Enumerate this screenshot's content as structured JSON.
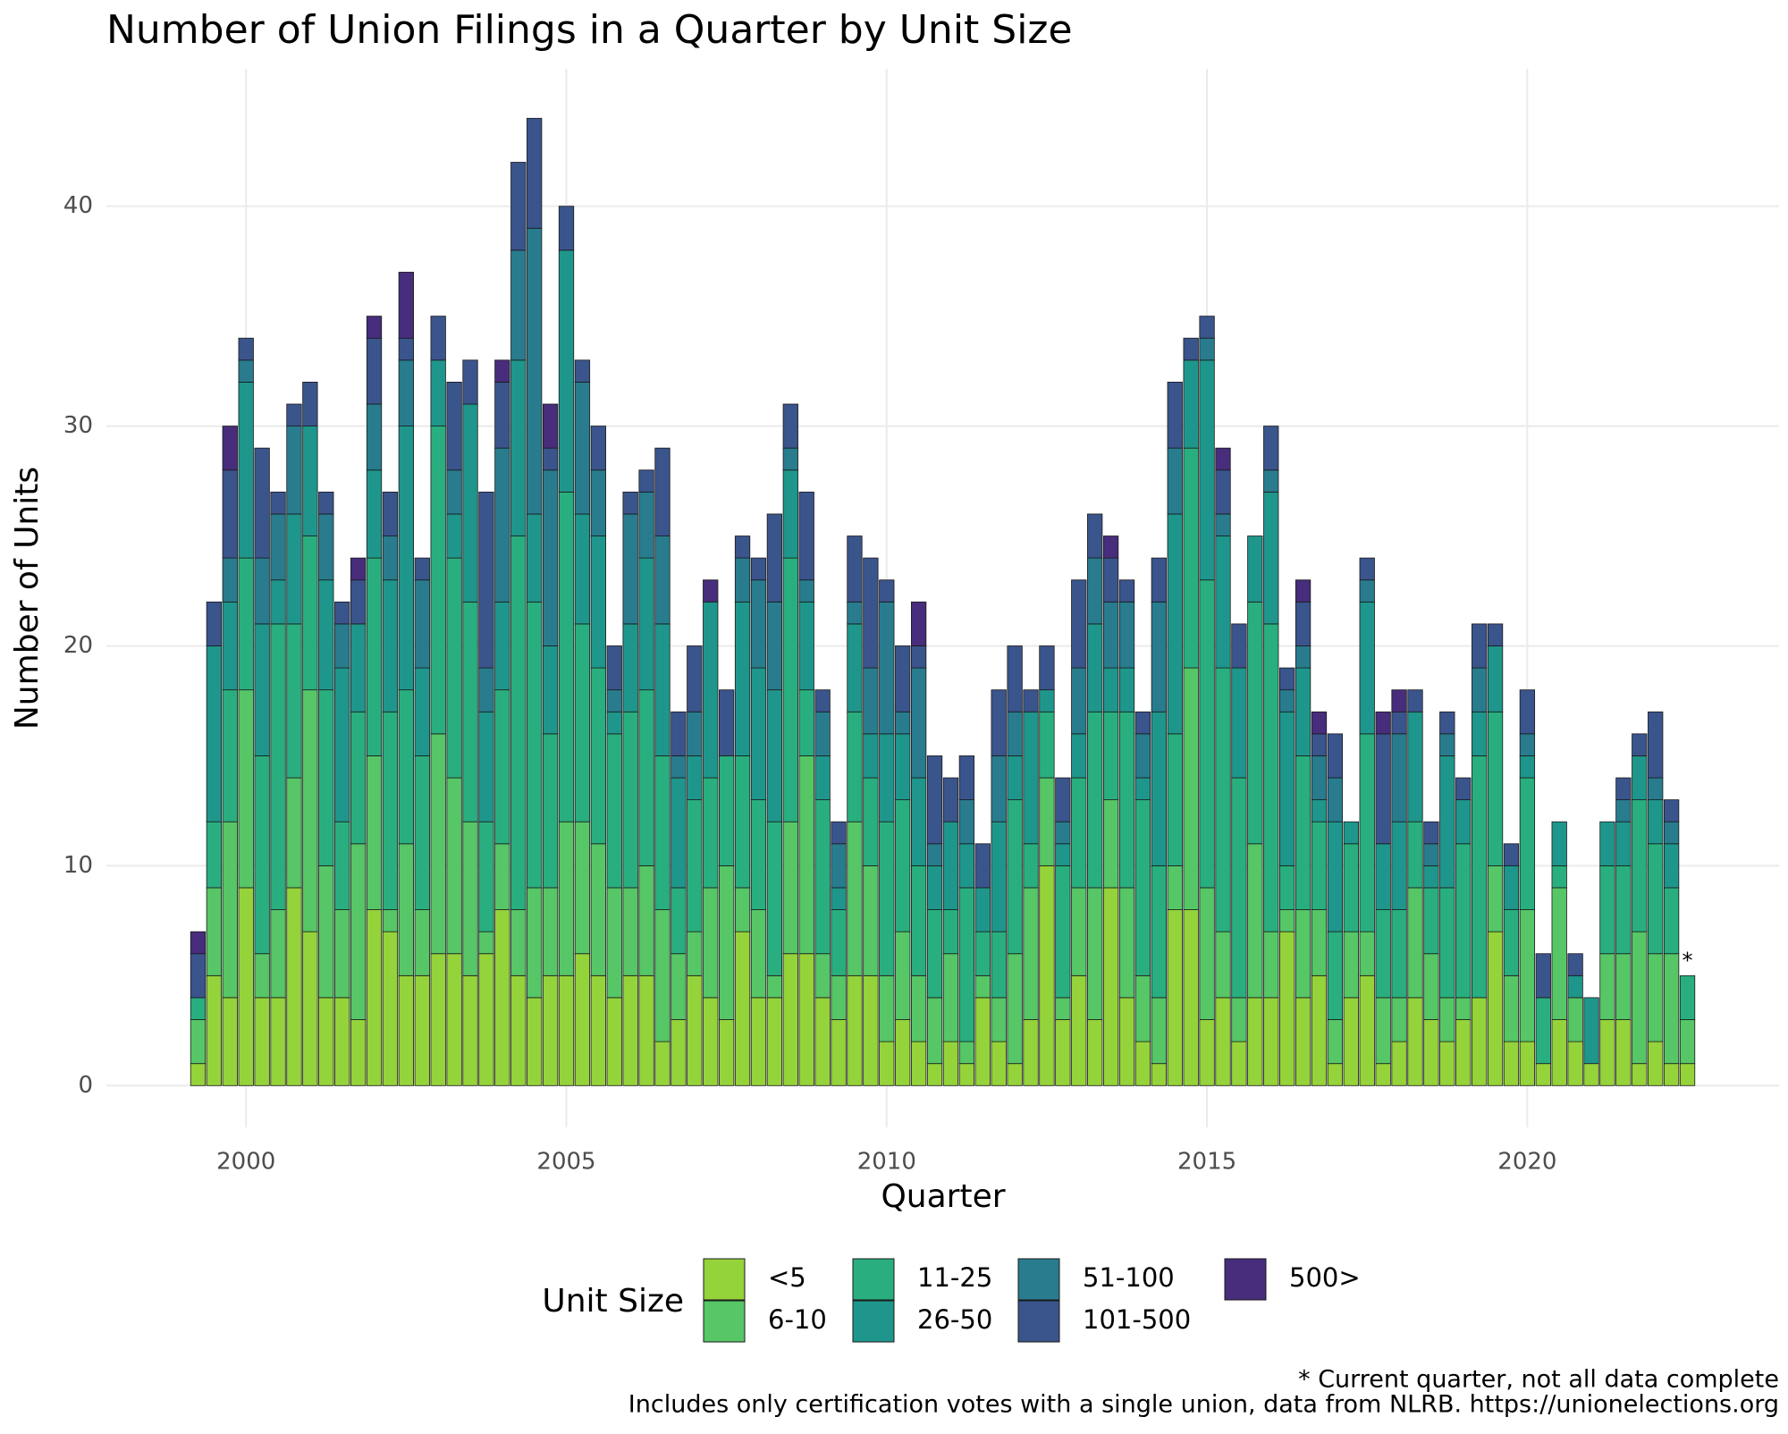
{
  "chart_data": {
    "type": "stacked_bar",
    "title": "Number of Union Filings in a Quarter by Unit Size",
    "x_label": "Quarter",
    "y_label": "Number of Units",
    "legend_title": "Unit Size",
    "annotation": "*",
    "footnotes": [
      "* Current quarter, not all data complete",
      "Includes only certification votes with a single union, data from NLRB. https://unionelections.org"
    ],
    "xlim": [
      1997.82,
      2023.93
    ],
    "xticks": [
      2000,
      2005,
      2010,
      2015,
      2020
    ],
    "ylim": [
      -1.9,
      46.25
    ],
    "yticks": [
      0,
      10,
      20,
      30,
      40
    ],
    "grid": true,
    "x": [
      1999.25,
      1999.5,
      1999.75,
      2000,
      2000.25,
      2000.5,
      2000.75,
      2001,
      2001.25,
      2001.5,
      2001.75,
      2002,
      2002.25,
      2002.5,
      2002.75,
      2003,
      2003.25,
      2003.5,
      2003.75,
      2004,
      2004.25,
      2004.5,
      2004.75,
      2005,
      2005.25,
      2005.5,
      2005.75,
      2006,
      2006.25,
      2006.5,
      2006.75,
      2007,
      2007.25,
      2007.5,
      2007.75,
      2008,
      2008.25,
      2008.5,
      2008.75,
      2009,
      2009.25,
      2009.5,
      2009.75,
      2010,
      2010.25,
      2010.5,
      2010.75,
      2011,
      2011.25,
      2011.5,
      2011.75,
      2012,
      2012.25,
      2012.5,
      2012.75,
      2013,
      2013.25,
      2013.5,
      2013.75,
      2014,
      2014.25,
      2014.5,
      2014.75,
      2015,
      2015.25,
      2015.5,
      2015.75,
      2016,
      2016.25,
      2016.5,
      2016.75,
      2017,
      2017.25,
      2017.5,
      2017.75,
      2018,
      2018.25,
      2018.5,
      2018.75,
      2019,
      2019.25,
      2019.5,
      2019.75,
      2020,
      2020.25,
      2020.5,
      2020.75,
      2021,
      2021.25,
      2021.5,
      2021.75,
      2022,
      2022.25,
      2022.5
    ],
    "series": [
      {
        "name": "<5",
        "color": "#95d33a",
        "values": [
          1,
          5,
          4,
          9,
          4,
          4,
          9,
          7,
          4,
          4,
          3,
          8,
          7,
          5,
          5,
          6,
          6,
          5,
          6,
          8,
          5,
          4,
          5,
          5,
          6,
          5,
          4,
          5,
          5,
          2,
          3,
          5,
          4,
          3,
          7,
          4,
          4,
          6,
          6,
          4,
          3,
          5,
          5,
          2,
          3,
          2,
          1,
          2,
          1,
          4,
          2,
          1,
          3,
          10,
          3,
          5,
          3,
          9,
          4,
          2,
          1,
          8,
          8,
          3,
          4,
          2,
          4,
          4,
          7,
          4,
          5,
          1,
          4,
          5,
          1,
          2,
          4,
          3,
          2,
          3,
          4,
          7,
          2,
          2,
          1,
          3,
          2,
          1,
          3,
          3,
          1,
          2,
          1,
          1
        ]
      },
      {
        "name": "6-10",
        "color": "#56c667",
        "values": [
          2,
          4,
          8,
          9,
          2,
          4,
          5,
          11,
          6,
          4,
          8,
          7,
          1,
          6,
          3,
          10,
          8,
          7,
          1,
          3,
          3,
          5,
          4,
          7,
          6,
          6,
          5,
          4,
          5,
          6,
          3,
          2,
          5,
          7,
          2,
          4,
          1,
          6,
          9,
          2,
          2,
          7,
          5,
          3,
          4,
          3,
          3,
          4,
          1,
          1,
          2,
          5,
          6,
          4,
          1,
          4,
          6,
          4,
          5,
          3,
          3,
          2,
          11,
          6,
          3,
          2,
          7,
          3,
          1,
          4,
          3,
          2,
          3,
          2,
          3,
          2,
          5,
          3,
          2,
          1,
          0,
          3,
          3,
          6,
          0,
          6,
          2,
          0,
          3,
          3,
          6,
          4,
          5,
          2
        ]
      },
      {
        "name": "11-25",
        "color": "#29af7f",
        "values": [
          1,
          3,
          6,
          6,
          9,
          13,
          7,
          7,
          8,
          4,
          6,
          9,
          9,
          7,
          7,
          14,
          10,
          10,
          5,
          7,
          17,
          13,
          7,
          15,
          9,
          8,
          7,
          8,
          8,
          7,
          3,
          6,
          5,
          5,
          6,
          5,
          7,
          12,
          3,
          7,
          3,
          5,
          4,
          7,
          6,
          5,
          4,
          2,
          7,
          2,
          3,
          7,
          2,
          3,
          6,
          5,
          8,
          4,
          8,
          8,
          6,
          6,
          10,
          14,
          12,
          10,
          11,
          14,
          2,
          7,
          4,
          4,
          4,
          9,
          4,
          4,
          3,
          3,
          5,
          7,
          11,
          7,
          3,
          6,
          3,
          1,
          0,
          0,
          4,
          4,
          6,
          5,
          3,
          2
        ]
      },
      {
        "name": "26-50",
        "color": "#1f968b",
        "values": [
          0,
          8,
          4,
          8,
          6,
          2,
          5,
          5,
          5,
          7,
          4,
          4,
          6,
          12,
          4,
          3,
          2,
          9,
          5,
          4,
          8,
          4,
          4,
          11,
          5,
          6,
          1,
          4,
          6,
          6,
          5,
          2,
          8,
          0,
          7,
          6,
          6,
          4,
          4,
          2,
          1,
          4,
          2,
          4,
          3,
          4,
          2,
          4,
          2,
          2,
          5,
          2,
          6,
          1,
          1,
          2,
          4,
          2,
          2,
          1,
          7,
          10,
          4,
          10,
          6,
          5,
          3,
          6,
          7,
          4,
          1,
          5,
          1,
          6,
          3,
          4,
          5,
          1,
          6,
          2,
          2,
          3,
          2,
          1,
          0,
          2,
          1,
          3,
          2,
          2,
          2,
          2,
          2,
          0
        ]
      },
      {
        "name": "51-100",
        "color": "#287c8e",
        "values": [
          0,
          0,
          2,
          1,
          3,
          3,
          4,
          0,
          3,
          2,
          0,
          3,
          2,
          3,
          4,
          0,
          2,
          0,
          2,
          7,
          5,
          13,
          8,
          0,
          6,
          3,
          1,
          5,
          3,
          4,
          1,
          2,
          0,
          0,
          2,
          4,
          4,
          1,
          1,
          2,
          2,
          1,
          3,
          6,
          1,
          5,
          1,
          0,
          2,
          0,
          3,
          2,
          0,
          0,
          1,
          3,
          3,
          3,
          3,
          2,
          5,
          3,
          0,
          1,
          1,
          0,
          0,
          1,
          1,
          1,
          2,
          2,
          0,
          1,
          0,
          4,
          0,
          1,
          1,
          0,
          2,
          0,
          0,
          1,
          0,
          0,
          0,
          0,
          0,
          1,
          0,
          1,
          1,
          0
        ]
      },
      {
        "name": "101-500",
        "color": "#3a548c",
        "values": [
          2,
          2,
          4,
          1,
          5,
          1,
          1,
          2,
          1,
          1,
          2,
          3,
          2,
          1,
          1,
          2,
          4,
          2,
          8,
          3,
          4,
          5,
          1,
          2,
          1,
          2,
          2,
          1,
          1,
          4,
          2,
          3,
          0,
          3,
          1,
          1,
          4,
          2,
          4,
          1,
          1,
          3,
          5,
          1,
          3,
          1,
          4,
          2,
          2,
          2,
          3,
          3,
          1,
          2,
          2,
          4,
          2,
          2,
          1,
          1,
          2,
          3,
          1,
          1,
          2,
          2,
          0,
          2,
          1,
          2,
          1,
          2,
          0,
          1,
          5,
          1,
          1,
          1,
          1,
          1,
          2,
          1,
          1,
          2,
          2,
          0,
          1,
          0,
          0,
          1,
          1,
          3,
          1,
          0
        ]
      },
      {
        "name": "500>",
        "color": "#472d7b",
        "values": [
          1,
          0,
          2,
          0,
          0,
          0,
          0,
          0,
          0,
          0,
          1,
          1,
          0,
          3,
          0,
          0,
          0,
          0,
          0,
          1,
          0,
          0,
          2,
          0,
          0,
          0,
          0,
          0,
          0,
          0,
          0,
          0,
          1,
          0,
          0,
          0,
          0,
          0,
          0,
          0,
          0,
          0,
          0,
          0,
          0,
          2,
          0,
          0,
          0,
          0,
          0,
          0,
          0,
          0,
          0,
          0,
          0,
          1,
          0,
          0,
          0,
          0,
          0,
          0,
          1,
          0,
          0,
          0,
          0,
          1,
          1,
          0,
          0,
          0,
          1,
          1,
          0,
          0,
          0,
          0,
          0,
          0,
          0,
          0,
          0,
          0,
          0,
          0,
          0,
          0,
          0,
          0,
          0,
          0
        ]
      }
    ]
  }
}
